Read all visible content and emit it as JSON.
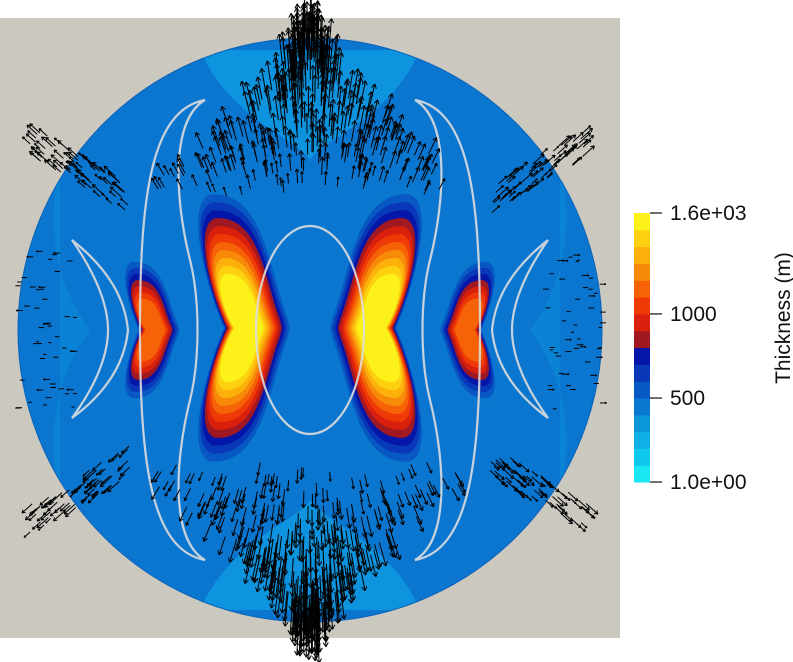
{
  "chart_data": {
    "type": "heatmap",
    "title": "",
    "colorbar": {
      "title": "Thickness (m)",
      "range": [
        1.0,
        1600
      ],
      "ticks": [
        {
          "value": 1600,
          "label": "1.6e+03"
        },
        {
          "value": 1000,
          "label": "1000"
        },
        {
          "value": 500,
          "label": "500"
        },
        {
          "value": 1.0,
          "label": "1.0e+00"
        }
      ],
      "bands": [
        {
          "from": 1,
          "to": 100,
          "color": "#18e6f2"
        },
        {
          "from": 100,
          "to": 200,
          "color": "#10c8ec"
        },
        {
          "from": 200,
          "to": 300,
          "color": "#0fb0e6"
        },
        {
          "from": 300,
          "to": 400,
          "color": "#0b96dc"
        },
        {
          "from": 400,
          "to": 500,
          "color": "#0b78d0"
        },
        {
          "from": 500,
          "to": 600,
          "color": "#0858c4"
        },
        {
          "from": 600,
          "to": 700,
          "color": "#0838b8"
        },
        {
          "from": 700,
          "to": 800,
          "color": "#0416a8"
        },
        {
          "from": 800,
          "to": 900,
          "color": "#a01822"
        },
        {
          "from": 900,
          "to": 1000,
          "color": "#d8200c"
        },
        {
          "from": 1000,
          "to": 1100,
          "color": "#ee3a06"
        },
        {
          "from": 1100,
          "to": 1200,
          "color": "#f56208"
        },
        {
          "from": 1200,
          "to": 1300,
          "color": "#f88a0a"
        },
        {
          "from": 1300,
          "to": 1400,
          "color": "#fbb00c"
        },
        {
          "from": 1400,
          "to": 1500,
          "color": "#fdd010"
        },
        {
          "from": 1500,
          "to": 1600,
          "color": "#fcf21a"
        }
      ]
    },
    "domain": {
      "shape": "disk",
      "background": "#0b76cf"
    },
    "features": [
      {
        "kind": "thickness-maximum",
        "side": "inner",
        "peak": 1600
      },
      {
        "kind": "thickness-maximum",
        "side": "outer",
        "peak": 1150
      },
      {
        "kind": "contour",
        "color": "#d8d8d8"
      },
      {
        "kind": "velocity-vectors",
        "color": "#000000"
      }
    ],
    "grid": false,
    "legend_position": "right"
  },
  "colors": {
    "canvas_background": "#cbc8c0",
    "page_background": "#ffffff",
    "contour": "#dddddd",
    "arrows": "#000000"
  }
}
